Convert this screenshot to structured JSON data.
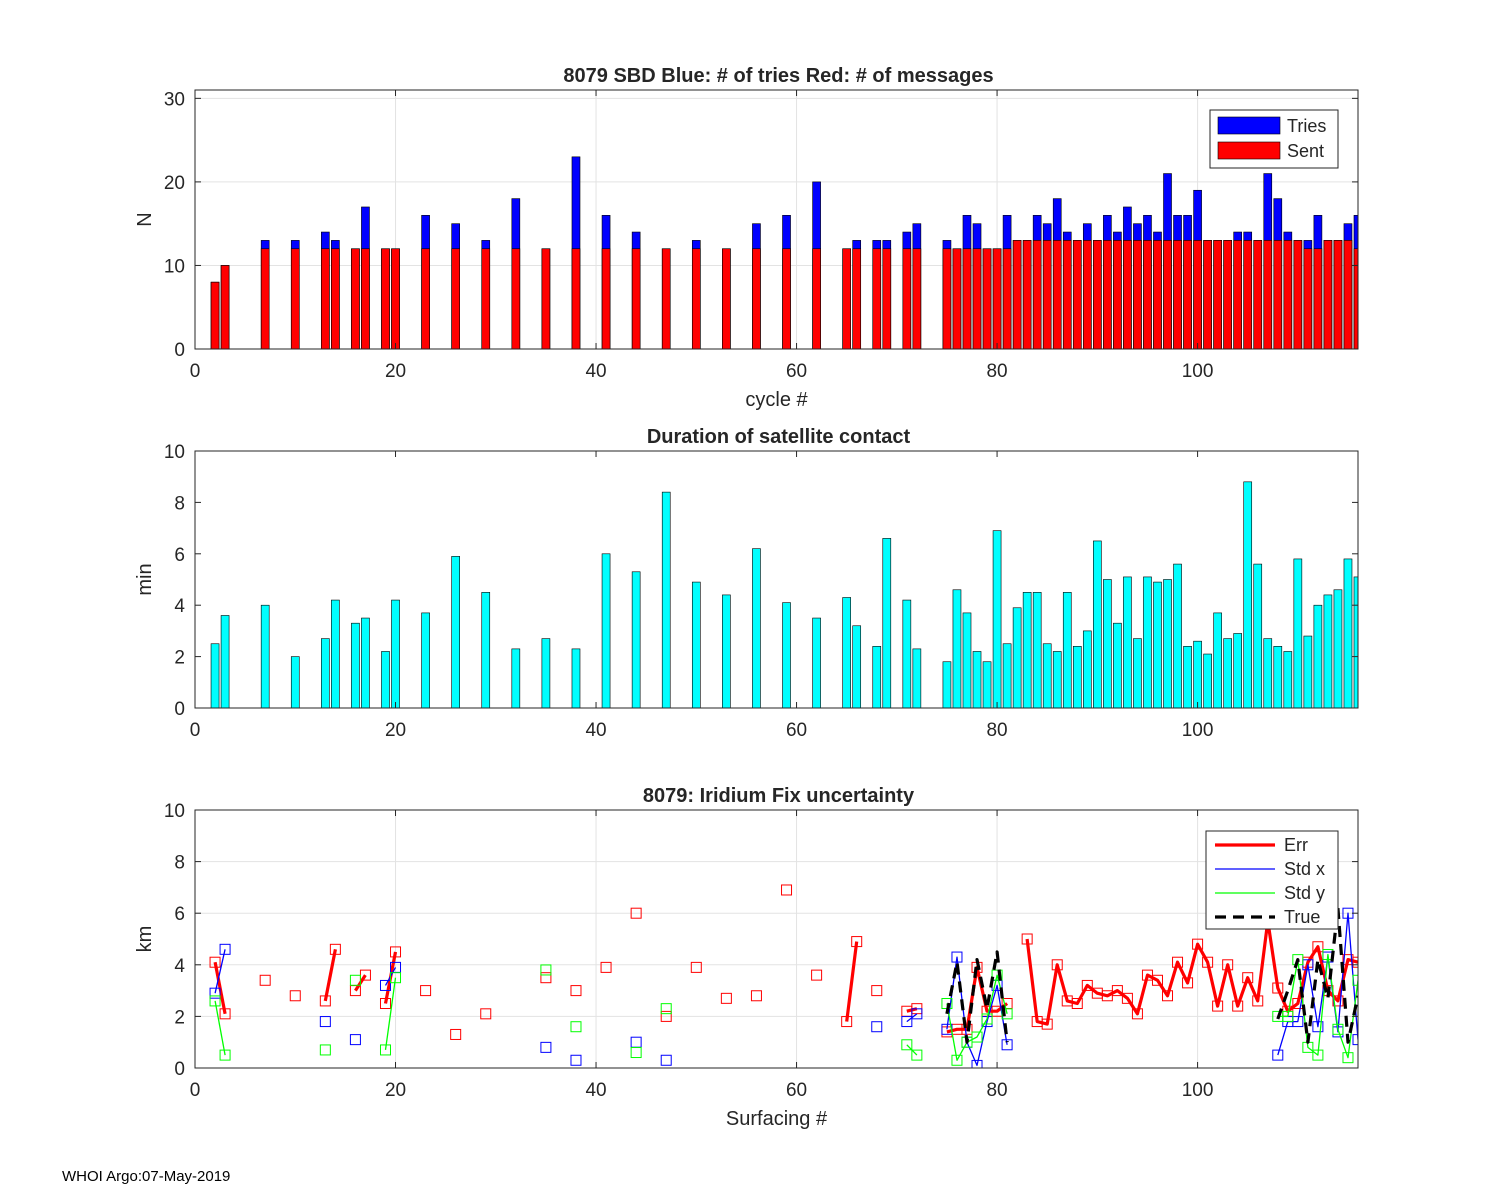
{
  "footer": "WHOI Argo:07-May-2019",
  "colors": {
    "tries": "#0000ff",
    "sent": "#ff0000",
    "duration": "#00ffff",
    "err": "#ff0000",
    "stdx": "#0000ff",
    "stdy": "#00ff00",
    "true": "#000000"
  },
  "chart_data": [
    {
      "id": "tries",
      "type": "bar",
      "title": "8079 SBD  Blue: # of tries   Red: # of messages",
      "xlabel": "cycle #",
      "ylabel": "N",
      "xlim": [
        0,
        116
      ],
      "ylim": [
        0,
        31
      ],
      "xticks": [
        0,
        20,
        40,
        60,
        80,
        100
      ],
      "yticks": [
        0,
        10,
        20,
        30
      ],
      "grid": true,
      "legend": {
        "position": "top-right",
        "entries": [
          "Tries",
          "Sent"
        ]
      },
      "x": [
        2,
        3,
        7,
        10,
        13,
        14,
        16,
        17,
        19,
        20,
        23,
        26,
        29,
        32,
        35,
        38,
        41,
        44,
        47,
        50,
        53,
        56,
        59,
        62,
        65,
        66,
        68,
        69,
        71,
        72,
        75,
        76,
        77,
        78,
        79,
        80,
        81,
        82,
        83,
        84,
        85,
        86,
        87,
        88,
        89,
        90,
        91,
        92,
        93,
        94,
        95,
        96,
        97,
        98,
        99,
        100,
        101,
        102,
        103,
        104,
        105,
        106,
        107,
        108,
        109,
        110,
        111,
        112,
        113,
        114,
        115,
        116
      ],
      "series": [
        {
          "name": "Tries",
          "values": [
            8,
            10,
            13,
            13,
            14,
            13,
            12,
            17,
            12,
            12,
            16,
            15,
            13,
            18,
            12,
            23,
            16,
            14,
            12,
            13,
            12,
            15,
            16,
            20,
            12,
            13,
            13,
            13,
            14,
            15,
            13,
            12,
            16,
            15,
            12,
            12,
            16,
            13,
            13,
            16,
            15,
            18,
            14,
            13,
            15,
            13,
            16,
            14,
            17,
            15,
            16,
            14,
            21,
            16,
            16,
            19,
            13,
            13,
            13,
            14,
            14,
            13,
            21,
            18,
            14,
            13,
            13,
            16,
            13,
            13,
            15,
            16
          ]
        },
        {
          "name": "Sent",
          "values": [
            8,
            10,
            12,
            12,
            12,
            12,
            12,
            12,
            12,
            12,
            12,
            12,
            12,
            12,
            12,
            12,
            12,
            12,
            12,
            12,
            12,
            12,
            12,
            12,
            12,
            12,
            12,
            12,
            12,
            12,
            12,
            12,
            12,
            12,
            12,
            12,
            12,
            13,
            13,
            13,
            13,
            13,
            13,
            13,
            13,
            13,
            13,
            13,
            13,
            13,
            13,
            13,
            13,
            13,
            13,
            13,
            13,
            13,
            13,
            13,
            13,
            13,
            13,
            13,
            13,
            13,
            12,
            12,
            13,
            13,
            13,
            12
          ]
        }
      ]
    },
    {
      "id": "duration",
      "type": "bar",
      "title": "Duration of satellite contact",
      "xlabel": "",
      "ylabel": "min",
      "xlim": [
        0,
        116
      ],
      "ylim": [
        0,
        10
      ],
      "xticks": [
        0,
        20,
        40,
        60,
        80,
        100
      ],
      "yticks": [
        0,
        2,
        4,
        6,
        8,
        10
      ],
      "grid": false,
      "x": [
        2,
        3,
        7,
        10,
        13,
        14,
        16,
        17,
        19,
        20,
        23,
        26,
        29,
        32,
        35,
        38,
        41,
        44,
        47,
        50,
        53,
        56,
        59,
        62,
        65,
        66,
        68,
        69,
        71,
        72,
        75,
        76,
        77,
        78,
        79,
        80,
        81,
        82,
        83,
        84,
        85,
        86,
        87,
        88,
        89,
        90,
        91,
        92,
        93,
        94,
        95,
        96,
        97,
        98,
        99,
        100,
        101,
        102,
        103,
        104,
        105,
        106,
        107,
        108,
        109,
        110,
        111,
        112,
        113,
        114,
        115,
        116
      ],
      "values": [
        2.5,
        3.6,
        4.0,
        2.0,
        2.7,
        4.2,
        3.3,
        3.5,
        2.2,
        4.2,
        3.7,
        5.9,
        4.5,
        2.3,
        2.7,
        2.3,
        6.0,
        5.3,
        8.4,
        4.9,
        4.4,
        6.2,
        4.1,
        3.5,
        4.3,
        3.2,
        2.4,
        6.6,
        4.2,
        2.3,
        1.8,
        4.6,
        3.7,
        2.2,
        1.8,
        6.9,
        2.5,
        3.9,
        4.5,
        4.5,
        2.5,
        2.2,
        4.5,
        2.4,
        3.0,
        6.5,
        5.0,
        3.3,
        5.1,
        2.7,
        5.1,
        4.9,
        5.0,
        5.6,
        2.4,
        2.6,
        2.1,
        3.7,
        2.7,
        2.9,
        8.8,
        5.6,
        2.7,
        2.4,
        2.2,
        5.8,
        2.8,
        4.0,
        4.4,
        4.6,
        5.8,
        5.1
      ]
    },
    {
      "id": "fix",
      "type": "line",
      "title": "8079: Iridium Fix uncertainty",
      "xlabel": "Surfacing #",
      "ylabel": "km",
      "xlim": [
        0,
        116
      ],
      "ylim": [
        0,
        10
      ],
      "xticks": [
        0,
        20,
        40,
        60,
        80,
        100
      ],
      "yticks": [
        0,
        2,
        4,
        6,
        8,
        10
      ],
      "grid": true,
      "legend": {
        "position": "top-right",
        "entries": [
          "Err",
          "Std x",
          "Std y",
          "True"
        ]
      },
      "series": [
        {
          "name": "Err",
          "x": [
            2,
            3,
            7,
            10,
            13,
            14,
            16,
            17,
            19,
            20,
            23,
            26,
            29,
            35,
            38,
            41,
            44,
            47,
            50,
            53,
            56,
            59,
            62,
            65,
            66,
            68,
            71,
            72,
            75,
            76,
            77,
            78,
            79,
            80,
            81,
            83,
            84,
            85,
            86,
            87,
            88,
            89,
            90,
            91,
            92,
            93,
            94,
            95,
            96,
            97,
            98,
            99,
            100,
            101,
            102,
            103,
            104,
            105,
            106,
            107,
            108,
            109,
            110,
            111,
            112,
            113,
            114,
            115,
            116
          ],
          "y": [
            4.1,
            2.1,
            3.4,
            2.8,
            2.6,
            4.6,
            3.0,
            3.6,
            2.5,
            4.5,
            3.0,
            1.3,
            2.1,
            3.5,
            3.0,
            3.9,
            6.0,
            2.0,
            3.9,
            2.7,
            2.8,
            6.9,
            3.6,
            1.8,
            4.9,
            3.0,
            2.2,
            2.3,
            1.4,
            1.5,
            1.5,
            3.9,
            2.2,
            2.2,
            2.5,
            5.0,
            1.8,
            1.7,
            4.0,
            2.6,
            2.5,
            3.2,
            2.9,
            2.8,
            3.0,
            2.7,
            2.1,
            3.6,
            3.4,
            2.8,
            4.1,
            3.3,
            4.8,
            4.1,
            2.4,
            4.0,
            2.4,
            3.5,
            2.6,
            5.7,
            3.1,
            2.2,
            2.5,
            4.1,
            4.7,
            3.0,
            2.6,
            4.2,
            4.1
          ]
        },
        {
          "name": "Std x",
          "x": [
            2,
            3,
            13,
            16,
            19,
            20,
            35,
            38,
            44,
            47,
            68,
            71,
            72,
            75,
            76,
            77,
            78,
            79,
            80,
            81,
            108,
            109,
            110,
            111,
            112,
            113,
            114,
            115,
            116
          ],
          "y": [
            2.9,
            4.6,
            1.8,
            1.1,
            3.2,
            3.9,
            0.8,
            0.3,
            1.0,
            0.3,
            1.6,
            1.8,
            2.1,
            1.5,
            4.3,
            1.0,
            0.1,
            1.8,
            3.2,
            0.9,
            0.5,
            1.8,
            1.8,
            4.0,
            1.6,
            4.3,
            1.4,
            6.0,
            1.1
          ]
        },
        {
          "name": "Std y",
          "x": [
            2,
            3,
            13,
            16,
            19,
            20,
            35,
            38,
            44,
            47,
            71,
            72,
            75,
            76,
            77,
            78,
            79,
            80,
            81,
            108,
            109,
            110,
            111,
            112,
            113,
            114,
            115,
            116
          ],
          "y": [
            2.6,
            0.5,
            0.7,
            3.4,
            0.7,
            3.5,
            3.8,
            1.6,
            0.6,
            2.3,
            0.9,
            0.5,
            2.5,
            0.3,
            1.0,
            1.2,
            1.9,
            3.6,
            2.1,
            2.0,
            2.0,
            4.2,
            0.8,
            0.5,
            4.4,
            1.5,
            0.4,
            3.4
          ]
        },
        {
          "name": "True",
          "x": [
            75,
            76,
            77,
            78,
            79,
            80,
            81,
            108,
            109,
            110,
            111,
            112,
            113,
            114,
            115,
            116
          ],
          "y": [
            2.1,
            4.1,
            1.0,
            4.2,
            2.3,
            4.5,
            1.0,
            1.9,
            3.0,
            4.2,
            1.0,
            4.2,
            2.7,
            6.2,
            1.0,
            2.8
          ]
        }
      ]
    }
  ]
}
